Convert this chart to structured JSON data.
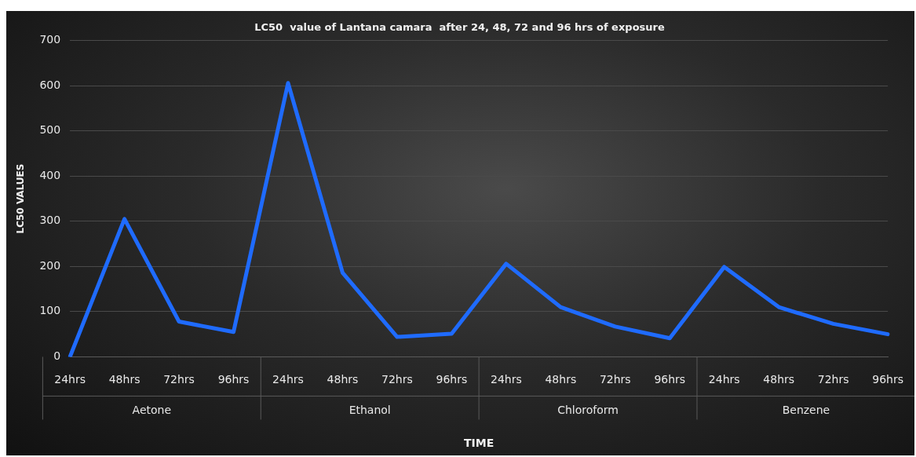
{
  "chart_data": {
    "type": "line",
    "title": "LC50  value of Lantana camara  after 24, 48, 72 and 96 hrs of exposure",
    "xlabel": "TIME",
    "ylabel": "LC50 VALUES",
    "categories": [
      "24hrs",
      "48hrs",
      "72hrs",
      "96hrs",
      "24hrs",
      "48hrs",
      "72hrs",
      "96hrs",
      "24hrs",
      "48hrs",
      "72hrs",
      "96hrs",
      "24hrs",
      "48hrs",
      "72hrs",
      "96hrs"
    ],
    "series": [
      {
        "color": "#1f6bff",
        "values": [
          0,
          305,
          78,
          55,
          606,
          186,
          44,
          51,
          206,
          110,
          67,
          41,
          199,
          110,
          73,
          50
        ]
      }
    ],
    "annotations": [
      "Aetone",
      "Ethanol",
      "Chloroform",
      "Benzene"
    ],
    "ylim": [
      0,
      700
    ],
    "yticks": [
      0,
      100,
      200,
      300,
      400,
      500,
      600,
      700
    ],
    "grid": "y",
    "legend": false,
    "marker": "none",
    "line_style": "solid"
  }
}
